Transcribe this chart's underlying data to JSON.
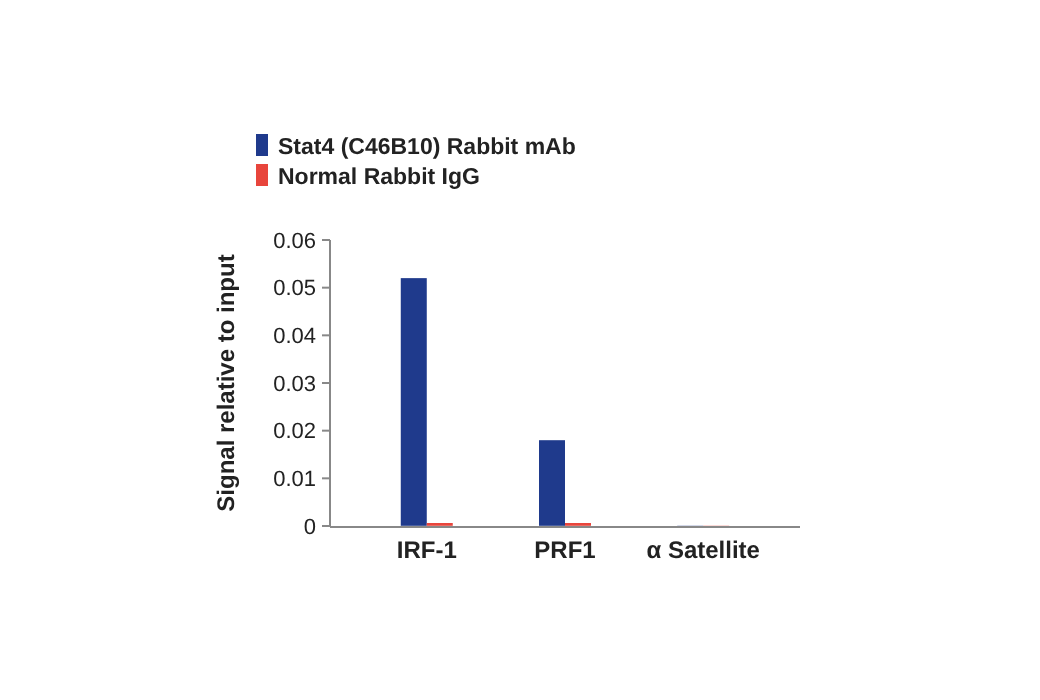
{
  "chart_data": {
    "type": "bar",
    "ylabel": "Signal relative to input",
    "categories": [
      "IRF-1",
      "PRF1",
      "α Satellite"
    ],
    "series": [
      {
        "name": "Stat4 (C46B10) Rabbit mAb",
        "color": "#1f3a8c",
        "values": [
          0.052,
          0.018,
          0
        ]
      },
      {
        "name": "Normal Rabbit IgG",
        "color": "#e8453c",
        "values": [
          0.0003,
          0.0003,
          0
        ]
      }
    ],
    "ylim": [
      0,
      0.06
    ],
    "yticks": [
      0,
      0.01,
      0.02,
      0.03,
      0.04,
      0.05,
      0.06
    ],
    "legend": "top",
    "grid": false
  }
}
